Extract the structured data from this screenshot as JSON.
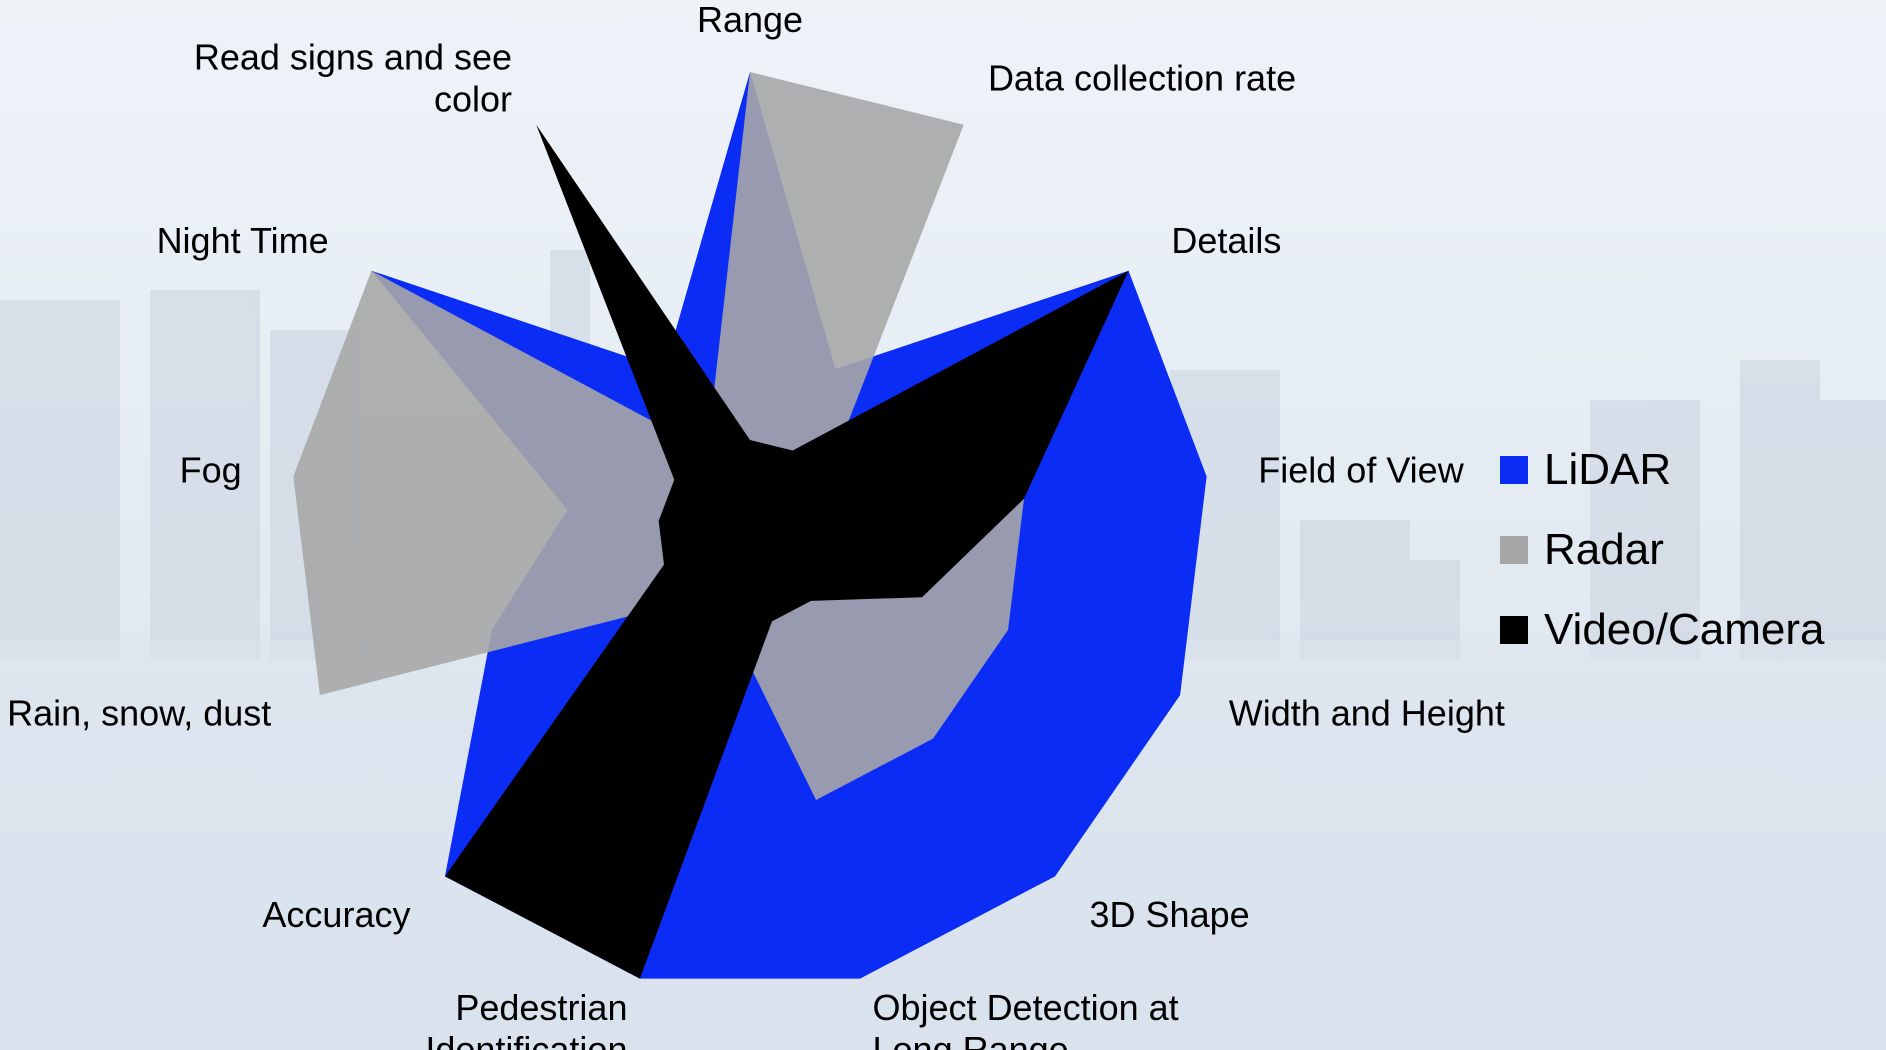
{
  "chart_data": {
    "type": "radar",
    "title": "",
    "categories": [
      "Range",
      "Data collection rate",
      "Details",
      "Field of View",
      "Width and Height",
      "3D Shape",
      "Object Detection at Long Range",
      "Pedestrian Identification",
      "Accuracy",
      "Rain, snow, dust",
      "Fog",
      "Night Time",
      "Read signs and see color"
    ],
    "category_lines": [
      [
        "Range"
      ],
      [
        "Data collection rate"
      ],
      [
        "Details"
      ],
      [
        "Field of View"
      ],
      [
        "Width and Height"
      ],
      [
        "3D Shape"
      ],
      [
        "Object Detection at",
        "Long Range"
      ],
      [
        "Pedestrian",
        "Identification"
      ],
      [
        "Accuracy"
      ],
      [
        "Rain, snow, dust"
      ],
      [
        "Fog"
      ],
      [
        "Night Time"
      ],
      [
        "Read signs and see",
        "color"
      ]
    ],
    "rmax": 5,
    "series": [
      {
        "name": "LiDAR",
        "color": "#0a2cf5",
        "values": [
          5,
          2,
          5,
          5,
          5,
          5,
          5,
          5,
          5,
          3,
          2,
          5,
          2
        ]
      },
      {
        "name": "Radar",
        "color": "#a7a7a7",
        "values": [
          5,
          5,
          1,
          3,
          3,
          3,
          3,
          1,
          1,
          5,
          5,
          5,
          1
        ]
      },
      {
        "name": "Video/Camera",
        "color": "#000000",
        "values": [
          1,
          1,
          5,
          3,
          2,
          1,
          1,
          5,
          5,
          1,
          1,
          1,
          5
        ]
      }
    ],
    "legend": "right"
  }
}
